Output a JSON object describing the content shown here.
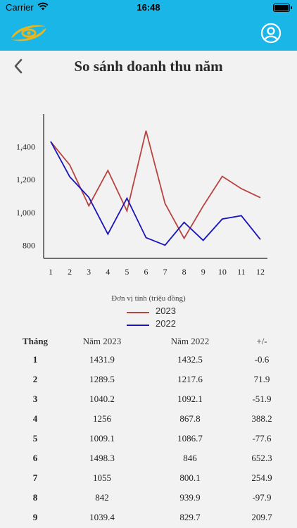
{
  "status_bar": {
    "carrier": "Carrier",
    "time": "16:48"
  },
  "header": {
    "logo_icon": "company-logo-icon",
    "profile_icon": "user-profile-icon",
    "colors": {
      "bar": "#1ab6e8",
      "logo": "#e6b522"
    }
  },
  "nav": {
    "back_icon": "chevron-left-icon",
    "title": "So sánh doanh thu năm"
  },
  "chart_data": {
    "type": "line",
    "categories": [
      "1",
      "2",
      "3",
      "4",
      "5",
      "6",
      "7",
      "8",
      "9",
      "10",
      "11",
      "12"
    ],
    "series": [
      {
        "name": "2023",
        "color": "#b8433f",
        "values": [
          1431.9,
          1289.5,
          1040.2,
          1256,
          1009.1,
          1498.3,
          1055,
          842,
          1039.4,
          1220,
          1145,
          1090
        ]
      },
      {
        "name": "2022",
        "color": "#1a14b8",
        "values": [
          1432.5,
          1217.6,
          1092.1,
          867.8,
          1086.7,
          846,
          800.1,
          939.9,
          829.7,
          960,
          980,
          835
        ]
      }
    ],
    "ylim": [
      720,
      1600
    ],
    "yticks": [
      800,
      1000,
      1200,
      1400
    ],
    "ytick_labels": [
      "800",
      "1,000",
      "1,200",
      "1,400"
    ],
    "unit_label": "Đơn vị tính (triệu đồng)",
    "legend_position": "bottom-center"
  },
  "table": {
    "headers": [
      "Tháng",
      "Năm 2023",
      "Năm 2022",
      "+/-"
    ],
    "rows": [
      [
        "1",
        "1431.9",
        "1432.5",
        "-0.6"
      ],
      [
        "2",
        "1289.5",
        "1217.6",
        "71.9"
      ],
      [
        "3",
        "1040.2",
        "1092.1",
        "-51.9"
      ],
      [
        "4",
        "1256",
        "867.8",
        "388.2"
      ],
      [
        "5",
        "1009.1",
        "1086.7",
        "-77.6"
      ],
      [
        "6",
        "1498.3",
        "846",
        "652.3"
      ],
      [
        "7",
        "1055",
        "800.1",
        "254.9"
      ],
      [
        "8",
        "842",
        "939.9",
        "-97.9"
      ],
      [
        "9",
        "1039.4",
        "829.7",
        "209.7"
      ]
    ]
  }
}
